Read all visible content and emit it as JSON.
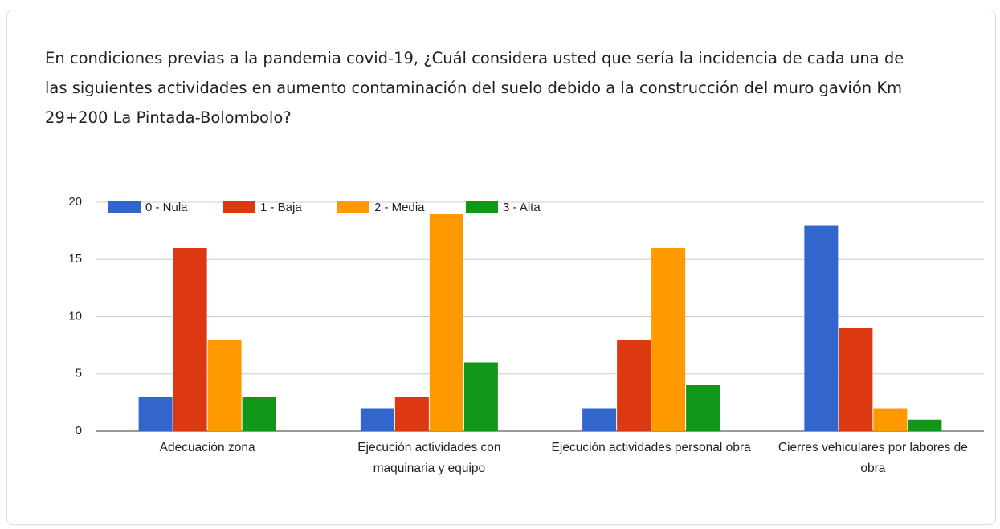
{
  "chart_data": {
    "type": "bar",
    "title": "En condiciones previas a la pandemia covid-19, ¿Cuál considera usted que sería la incidencia de cada una de las siguientes actividades en aumento contaminación del suelo debido a la construcción del muro gavión Km 29+200 La Pintada-Bolombolo?",
    "categories": [
      "Adecuación zona",
      "Ejecución actividades con maquinaria y equipo",
      "Ejecución actividades personal obra",
      "Cierres vehiculares por labores de obra"
    ],
    "series": [
      {
        "name": "0 - Nula",
        "color": "#3366cc",
        "values": [
          3,
          2,
          2,
          18
        ]
      },
      {
        "name": "1 - Baja",
        "color": "#dc3912",
        "values": [
          16,
          3,
          8,
          9
        ]
      },
      {
        "name": "2 - Media",
        "color": "#ff9900",
        "values": [
          8,
          19,
          16,
          2
        ]
      },
      {
        "name": "3 - Alta",
        "color": "#109618",
        "values": [
          3,
          6,
          4,
          1
        ]
      }
    ],
    "ylim": [
      0,
      20
    ],
    "yticks": [
      0,
      5,
      10,
      15,
      20
    ],
    "grid": true,
    "legend": "top-left"
  }
}
